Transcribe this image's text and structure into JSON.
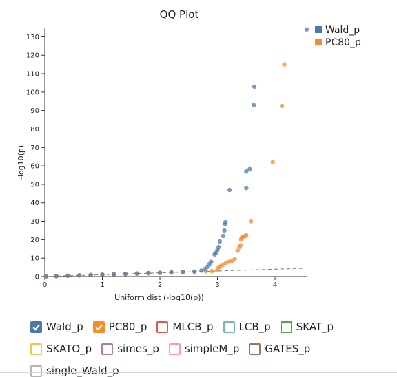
{
  "chart_data": {
    "type": "scatter",
    "title": "QQ Plot",
    "xlabel": "Uniform dist (-log10(p))",
    "ylabel": "-log10(p)",
    "xlim": [
      0,
      4.55
    ],
    "ylim": [
      0,
      135
    ],
    "xticks": [
      "0",
      "1",
      "2",
      "3",
      "4"
    ],
    "yticks": [
      "0",
      "10",
      "20",
      "30",
      "40",
      "50",
      "60",
      "70",
      "80",
      "90",
      "100",
      "110",
      "120",
      "130"
    ],
    "legend_position": "top-right",
    "reference_line": {
      "style": "dashed",
      "from": [
        0,
        0
      ],
      "to": [
        4.5,
        4.5
      ]
    },
    "series": [
      {
        "name": "Wald_p",
        "color": "#4e79a7",
        "points": [
          [
            0.02,
            0.1
          ],
          [
            0.2,
            0.25
          ],
          [
            0.4,
            0.45
          ],
          [
            0.6,
            0.65
          ],
          [
            0.8,
            0.85
          ],
          [
            1.0,
            1.05
          ],
          [
            1.2,
            1.25
          ],
          [
            1.4,
            1.45
          ],
          [
            1.6,
            1.65
          ],
          [
            1.8,
            1.85
          ],
          [
            2.0,
            2.05
          ],
          [
            2.2,
            2.3
          ],
          [
            2.4,
            2.5
          ],
          [
            2.6,
            2.7
          ],
          [
            2.72,
            3.2
          ],
          [
            2.78,
            4.0
          ],
          [
            2.82,
            5.2
          ],
          [
            2.86,
            6.8
          ],
          [
            2.89,
            8.0
          ],
          [
            2.95,
            12.0
          ],
          [
            2.98,
            13.0
          ],
          [
            3.0,
            14.5
          ],
          [
            3.02,
            16.0
          ],
          [
            3.04,
            19.0
          ],
          [
            3.1,
            22.0
          ],
          [
            3.12,
            25.0
          ],
          [
            3.13,
            28.5
          ],
          [
            3.14,
            29.5
          ],
          [
            3.21,
            47.0
          ],
          [
            3.5,
            48.0
          ],
          [
            3.5,
            57.0
          ],
          [
            3.56,
            58.3
          ],
          [
            3.63,
            93.0
          ],
          [
            3.64,
            103.0
          ],
          [
            4.55,
            134.0
          ]
        ]
      },
      {
        "name": "PC80_p",
        "color": "#f28e2b",
        "points": [
          [
            0.02,
            0.05
          ],
          [
            0.2,
            0.22
          ],
          [
            0.4,
            0.42
          ],
          [
            0.6,
            0.62
          ],
          [
            0.8,
            0.82
          ],
          [
            1.0,
            1.02
          ],
          [
            1.2,
            1.22
          ],
          [
            1.4,
            1.42
          ],
          [
            1.6,
            1.62
          ],
          [
            1.8,
            1.82
          ],
          [
            2.0,
            2.02
          ],
          [
            2.2,
            2.22
          ],
          [
            2.4,
            2.42
          ],
          [
            2.6,
            2.62
          ],
          [
            2.8,
            2.82
          ],
          [
            2.9,
            2.95
          ],
          [
            3.0,
            3.5
          ],
          [
            3.02,
            5.0
          ],
          [
            3.05,
            5.5
          ],
          [
            3.1,
            6.5
          ],
          [
            3.15,
            7.5
          ],
          [
            3.2,
            8.0
          ],
          [
            3.25,
            8.5
          ],
          [
            3.3,
            9.5
          ],
          [
            3.35,
            14.0
          ],
          [
            3.38,
            16.0
          ],
          [
            3.4,
            17.0
          ],
          [
            3.41,
            20.0
          ],
          [
            3.42,
            21.0
          ],
          [
            3.44,
            21.5
          ],
          [
            3.48,
            22.0
          ],
          [
            3.5,
            22.5
          ],
          [
            3.58,
            30.0
          ],
          [
            3.96,
            62.0
          ],
          [
            4.12,
            92.5
          ],
          [
            4.16,
            115.0
          ]
        ]
      }
    ]
  },
  "legend_checkboxes": [
    {
      "label": "Wald_p",
      "color": "#4e79a7",
      "checked": true
    },
    {
      "label": "PC80_p",
      "color": "#f28e2b",
      "checked": true
    },
    {
      "label": "MLCB_p",
      "color": "#e15759",
      "checked": false
    },
    {
      "label": "LCB_p",
      "color": "#76b7b2",
      "checked": false
    },
    {
      "label": "SKAT_p",
      "color": "#59a14f",
      "checked": false
    },
    {
      "label": "SKATO_p",
      "color": "#edc948",
      "checked": false
    },
    {
      "label": "simes_p",
      "color": "#b07aa1",
      "checked": false
    },
    {
      "label": "simpleM_p",
      "color": "#ff9da7",
      "checked": false
    },
    {
      "label": "GATES_p",
      "color": "#9c755f",
      "checked": false
    },
    {
      "label": "single_Wald_p",
      "color": "#bab0ac",
      "checked": false
    }
  ]
}
